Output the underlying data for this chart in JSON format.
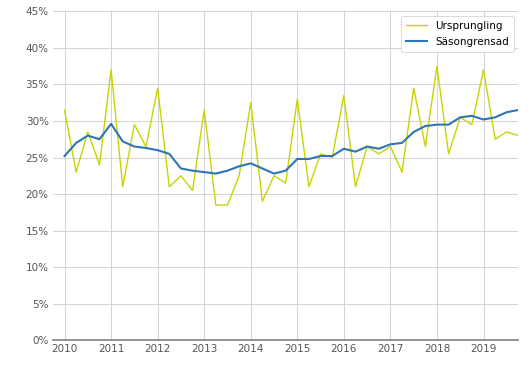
{
  "ylim": [
    0,
    0.45
  ],
  "yticks": [
    0.0,
    0.05,
    0.1,
    0.15,
    0.2,
    0.25,
    0.3,
    0.35,
    0.4,
    0.45
  ],
  "xticks": [
    2010,
    2011,
    2012,
    2013,
    2014,
    2015,
    2016,
    2017,
    2018,
    2019
  ],
  "xlim": [
    2009.75,
    2019.75
  ],
  "legend_labels": [
    "Ursprungling",
    "Säsongrensad"
  ],
  "ursprungling_x": [
    2010.0,
    2010.25,
    2010.5,
    2010.75,
    2011.0,
    2011.25,
    2011.5,
    2011.75,
    2012.0,
    2012.25,
    2012.5,
    2012.75,
    2013.0,
    2013.25,
    2013.5,
    2013.75,
    2014.0,
    2014.25,
    2014.5,
    2014.75,
    2015.0,
    2015.25,
    2015.5,
    2015.75,
    2016.0,
    2016.25,
    2016.5,
    2016.75,
    2017.0,
    2017.25,
    2017.5,
    2017.75,
    2018.0,
    2018.25,
    2018.5,
    2018.75,
    2019.0,
    2019.25,
    2019.5,
    2019.75
  ],
  "ursprungling_y": [
    0.315,
    0.23,
    0.285,
    0.24,
    0.37,
    0.21,
    0.295,
    0.265,
    0.345,
    0.21,
    0.225,
    0.205,
    0.315,
    0.185,
    0.185,
    0.225,
    0.325,
    0.19,
    0.225,
    0.215,
    0.33,
    0.21,
    0.255,
    0.25,
    0.335,
    0.21,
    0.265,
    0.255,
    0.265,
    0.23,
    0.345,
    0.265,
    0.375,
    0.255,
    0.305,
    0.295,
    0.37,
    0.275,
    0.285,
    0.28
  ],
  "sasongrensad_x": [
    2010.0,
    2010.25,
    2010.5,
    2010.75,
    2011.0,
    2011.25,
    2011.5,
    2011.75,
    2012.0,
    2012.25,
    2012.5,
    2012.75,
    2013.0,
    2013.25,
    2013.5,
    2013.75,
    2014.0,
    2014.25,
    2014.5,
    2014.75,
    2015.0,
    2015.25,
    2015.5,
    2015.75,
    2016.0,
    2016.25,
    2016.5,
    2016.75,
    2017.0,
    2017.25,
    2017.5,
    2017.75,
    2018.0,
    2018.25,
    2018.5,
    2018.75,
    2019.0,
    2019.25,
    2019.5,
    2019.75
  ],
  "sasongrensad_y": [
    0.252,
    0.27,
    0.28,
    0.275,
    0.296,
    0.272,
    0.265,
    0.263,
    0.26,
    0.255,
    0.235,
    0.232,
    0.23,
    0.228,
    0.232,
    0.238,
    0.242,
    0.235,
    0.228,
    0.232,
    0.248,
    0.248,
    0.252,
    0.252,
    0.262,
    0.258,
    0.265,
    0.262,
    0.268,
    0.27,
    0.285,
    0.293,
    0.295,
    0.295,
    0.305,
    0.307,
    0.302,
    0.305,
    0.312,
    0.315
  ],
  "line_color_ursprungling": "#c8d400",
  "line_color_sasongrensad": "#2e75b6",
  "grid_color": "#cccccc",
  "background_color": "#ffffff",
  "bottom_spine_color": "#808080",
  "tick_color": "#555555",
  "legend_edge_color": "#cccccc"
}
